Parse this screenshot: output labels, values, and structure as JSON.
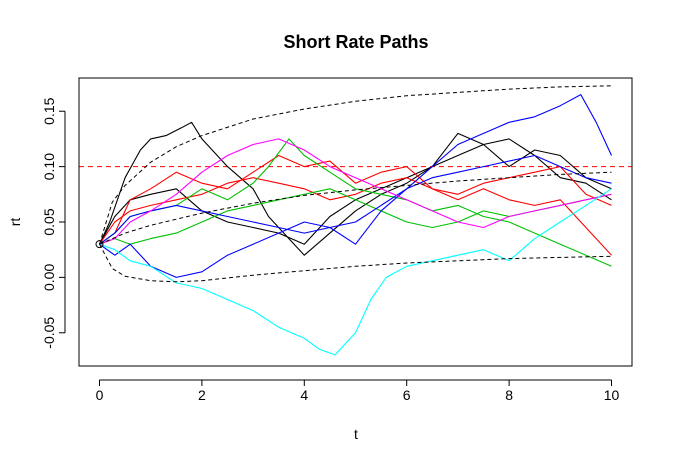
{
  "chart_data": {
    "type": "line",
    "title": "Short Rate Paths",
    "xlabel": "t",
    "ylabel": "rt",
    "xlim": [
      -0.4,
      10.4
    ],
    "ylim": [
      -0.08,
      0.18
    ],
    "xticks": [
      0,
      2,
      4,
      6,
      8,
      10
    ],
    "xtick_labels": [
      "0",
      "2",
      "4",
      "6",
      "8",
      "10"
    ],
    "yticks": [
      -0.05,
      0.0,
      0.05,
      0.1,
      0.15
    ],
    "ytick_labels": [
      "-0.05",
      "0.00",
      "0.05",
      "0.10",
      "0.15"
    ],
    "grid": false,
    "legend": "none",
    "start_point": {
      "x": 0,
      "y": 0.03
    },
    "reference_lines": [
      {
        "type": "hline",
        "y": 0.1,
        "color": "#ff0000",
        "dash": "dashed"
      }
    ],
    "envelope_curves": [
      {
        "style": "dashed",
        "color": "#000000",
        "x": [
          0,
          0.25,
          0.5,
          1,
          1.5,
          2,
          3,
          4,
          5,
          6,
          7,
          8,
          9,
          10
        ],
        "y": [
          0.03,
          0.068,
          0.083,
          0.104,
          0.118,
          0.128,
          0.143,
          0.152,
          0.159,
          0.164,
          0.167,
          0.17,
          0.172,
          0.173
        ]
      },
      {
        "style": "dashed",
        "color": "#000000",
        "x": [
          0,
          0.5,
          1,
          2,
          3,
          4,
          5,
          6,
          7,
          8,
          9,
          10
        ],
        "y": [
          0.03,
          0.04,
          0.047,
          0.058,
          0.067,
          0.074,
          0.079,
          0.083,
          0.087,
          0.09,
          0.093,
          0.095
        ]
      },
      {
        "style": "dashed",
        "color": "#000000",
        "x": [
          0,
          0.25,
          0.5,
          1,
          1.5,
          2,
          3,
          4,
          5,
          6,
          7,
          8,
          9,
          10
        ],
        "y": [
          0.03,
          0.008,
          0.001,
          -0.003,
          -0.004,
          -0.003,
          0.002,
          0.006,
          0.01,
          0.013,
          0.015,
          0.017,
          0.018,
          0.019
        ]
      }
    ],
    "series": [
      {
        "color": "#000000",
        "x": [
          0,
          0.2,
          0.5,
          0.8,
          1.0,
          1.3,
          1.6,
          1.8,
          2.0,
          2.5,
          3.0,
          3.3,
          3.7,
          4.0,
          4.5,
          5.0,
          5.5,
          6.0,
          6.5,
          7.0,
          7.5,
          8.0,
          8.5,
          9.0,
          9.5,
          10.0
        ],
        "y": [
          0.03,
          0.05,
          0.09,
          0.115,
          0.125,
          0.128,
          0.135,
          0.14,
          0.125,
          0.1,
          0.08,
          0.055,
          0.035,
          0.02,
          0.04,
          0.06,
          0.075,
          0.085,
          0.1,
          0.13,
          0.12,
          0.1,
          0.115,
          0.11,
          0.09,
          0.08
        ]
      },
      {
        "color": "#000000",
        "x": [
          0,
          0.3,
          0.6,
          1.0,
          1.5,
          2.0,
          2.5,
          3.0,
          3.5,
          4.0,
          4.5,
          5.0,
          5.5,
          6.0,
          6.5,
          7.0,
          7.5,
          8.0,
          8.5,
          9.0,
          9.5,
          10.0
        ],
        "y": [
          0.03,
          0.055,
          0.07,
          0.075,
          0.08,
          0.06,
          0.05,
          0.045,
          0.04,
          0.03,
          0.055,
          0.07,
          0.08,
          0.09,
          0.1,
          0.11,
          0.12,
          0.125,
          0.11,
          0.09,
          0.085,
          0.07
        ]
      },
      {
        "color": "#ff0000",
        "x": [
          0,
          0.3,
          0.6,
          1.0,
          1.5,
          2.0,
          2.5,
          3.0,
          3.5,
          4.0,
          4.5,
          5.0,
          5.5,
          6.0,
          6.5,
          7.0,
          7.5,
          8.0,
          8.5,
          9.0,
          9.5,
          10.0
        ],
        "y": [
          0.03,
          0.04,
          0.07,
          0.08,
          0.095,
          0.085,
          0.08,
          0.095,
          0.11,
          0.1,
          0.105,
          0.085,
          0.095,
          0.1,
          0.08,
          0.075,
          0.085,
          0.09,
          0.095,
          0.1,
          0.075,
          0.065
        ]
      },
      {
        "color": "#ff0000",
        "x": [
          0,
          0.3,
          0.6,
          1.0,
          1.5,
          2.0,
          2.5,
          3.0,
          3.5,
          4.0,
          4.5,
          5.0,
          5.5,
          6.0,
          6.5,
          7.0,
          7.5,
          8.0,
          8.5,
          9.0,
          9.5,
          10.0
        ],
        "y": [
          0.03,
          0.05,
          0.06,
          0.065,
          0.07,
          0.075,
          0.085,
          0.09,
          0.085,
          0.08,
          0.07,
          0.075,
          0.085,
          0.09,
          0.08,
          0.07,
          0.08,
          0.07,
          0.065,
          0.07,
          0.045,
          0.02
        ]
      },
      {
        "color": "#00c000",
        "x": [
          0,
          0.3,
          0.6,
          1.0,
          1.5,
          2.0,
          2.5,
          3.0,
          3.3,
          3.7,
          4.0,
          4.5,
          5.0,
          5.5,
          6.0,
          6.5,
          7.0,
          7.5,
          8.0,
          8.5,
          9.0,
          9.5,
          10.0
        ],
        "y": [
          0.03,
          0.04,
          0.055,
          0.06,
          0.065,
          0.08,
          0.07,
          0.085,
          0.1,
          0.125,
          0.11,
          0.095,
          0.08,
          0.075,
          0.07,
          0.06,
          0.065,
          0.055,
          0.05,
          0.04,
          0.03,
          0.02,
          0.01
        ]
      },
      {
        "color": "#00c000",
        "x": [
          0,
          0.3,
          0.6,
          1.0,
          1.5,
          2.0,
          2.5,
          3.0,
          3.5,
          4.0,
          4.5,
          5.0,
          5.5,
          6.0,
          6.5,
          7.0,
          7.5,
          8.0,
          8.5,
          9.0,
          9.5,
          10.0
        ],
        "y": [
          0.03,
          0.035,
          0.03,
          0.035,
          0.04,
          0.05,
          0.06,
          0.065,
          0.07,
          0.075,
          0.08,
          0.07,
          0.06,
          0.05,
          0.045,
          0.05,
          0.06,
          0.055,
          0.06,
          0.065,
          0.07,
          0.075
        ]
      },
      {
        "color": "#0000ff",
        "x": [
          0,
          0.3,
          0.6,
          1.0,
          1.5,
          2.0,
          2.5,
          3.0,
          3.5,
          4.0,
          4.5,
          5.0,
          5.5,
          6.0,
          6.5,
          7.0,
          7.5,
          8.0,
          8.5,
          9.0,
          9.4,
          9.7,
          10.0
        ],
        "y": [
          0.03,
          0.02,
          0.03,
          0.01,
          0.0,
          0.005,
          0.02,
          0.03,
          0.04,
          0.05,
          0.045,
          0.03,
          0.06,
          0.08,
          0.1,
          0.12,
          0.13,
          0.14,
          0.145,
          0.155,
          0.165,
          0.14,
          0.11
        ]
      },
      {
        "color": "#0000ff",
        "x": [
          0,
          0.3,
          0.6,
          1.0,
          1.5,
          2.0,
          2.5,
          3.0,
          3.5,
          4.0,
          4.5,
          5.0,
          5.5,
          6.0,
          6.5,
          7.0,
          7.5,
          8.0,
          8.5,
          9.0,
          9.5,
          10.0
        ],
        "y": [
          0.03,
          0.04,
          0.055,
          0.06,
          0.065,
          0.06,
          0.055,
          0.05,
          0.045,
          0.04,
          0.045,
          0.05,
          0.065,
          0.08,
          0.09,
          0.095,
          0.1,
          0.105,
          0.11,
          0.1,
          0.09,
          0.085
        ]
      },
      {
        "color": "#ff00ff",
        "x": [
          0,
          0.3,
          0.6,
          1.0,
          1.5,
          2.0,
          2.5,
          3.0,
          3.5,
          4.0,
          4.5,
          5.0,
          5.5,
          6.0,
          6.5,
          7.0,
          7.5,
          8.0,
          8.5,
          9.0,
          9.5,
          10.0
        ],
        "y": [
          0.03,
          0.035,
          0.05,
          0.06,
          0.075,
          0.095,
          0.11,
          0.12,
          0.125,
          0.115,
          0.1,
          0.09,
          0.08,
          0.07,
          0.06,
          0.05,
          0.045,
          0.055,
          0.06,
          0.065,
          0.07,
          0.075
        ]
      },
      {
        "color": "#00ffff",
        "x": [
          0,
          0.3,
          0.6,
          1.0,
          1.5,
          2.0,
          2.5,
          3.0,
          3.5,
          4.0,
          4.3,
          4.6,
          5.0,
          5.3,
          5.6,
          6.0,
          6.5,
          7.0,
          7.5,
          8.0,
          8.5,
          9.0,
          9.5,
          10.0
        ],
        "y": [
          0.03,
          0.025,
          0.015,
          0.01,
          -0.005,
          -0.01,
          -0.02,
          -0.03,
          -0.045,
          -0.055,
          -0.065,
          -0.07,
          -0.05,
          -0.02,
          0.0,
          0.01,
          0.015,
          0.02,
          0.025,
          0.015,
          0.035,
          0.05,
          0.065,
          0.08
        ]
      }
    ]
  }
}
